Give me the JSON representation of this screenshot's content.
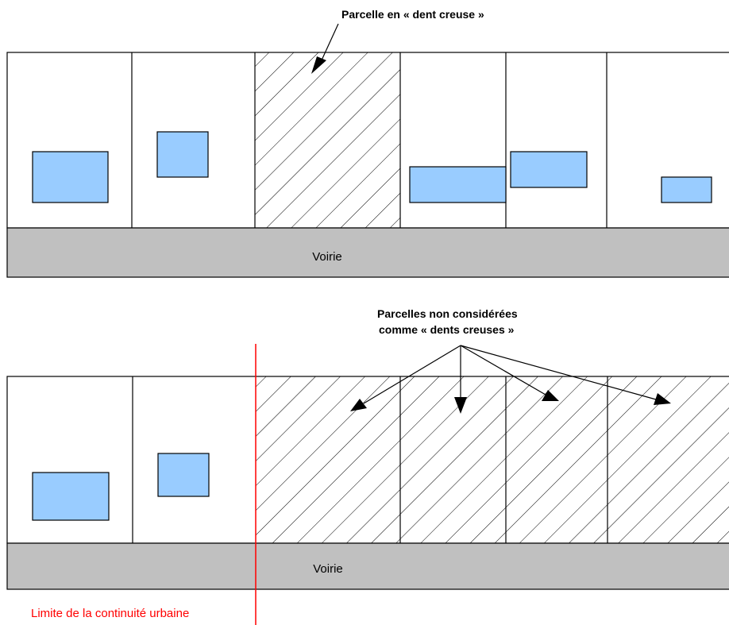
{
  "top_diagram": {
    "annotation": "Parcelle en « dent creuse »",
    "road_label": "Voirie"
  },
  "bottom_diagram": {
    "annotation_line1": "Parcelles non considérées",
    "annotation_line2": "comme « dents creuses »",
    "road_label": "Voirie",
    "limit_label": "Limite de la continuité urbaine"
  },
  "colors": {
    "building": "#99ccff",
    "road": "#c0c0c0",
    "limit_line": "#ff0000",
    "outline": "#000000"
  }
}
